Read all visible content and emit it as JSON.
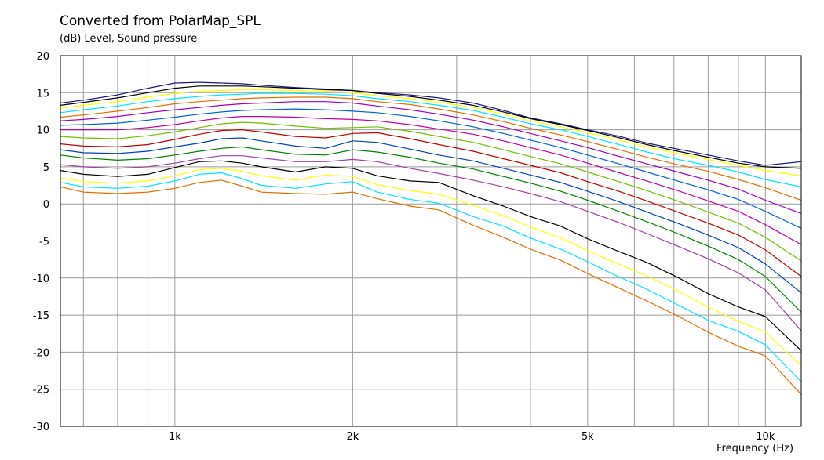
{
  "chart_data": {
    "type": "line",
    "title": "Converted from PolarMap_SPL",
    "ylabel": "(dB)  Level, Sound pressure",
    "xlabel": "Frequency  (Hz)",
    "xscale": "log",
    "xlim": [
      640,
      11500
    ],
    "ylim": [
      -30,
      20
    ],
    "grid": true,
    "x_tick_labels": [
      {
        "value": 1000,
        "label": "1k"
      },
      {
        "value": 2000,
        "label": "2k"
      },
      {
        "value": 5000,
        "label": "5k"
      },
      {
        "value": 10000,
        "label": "10k"
      }
    ],
    "y_ticks": [
      20,
      15,
      10,
      5,
      0,
      -5,
      -10,
      -15,
      -20,
      -25,
      -30
    ],
    "x": [
      640,
      700,
      800,
      900,
      1000,
      1100,
      1200,
      1300,
      1400,
      1600,
      1800,
      2000,
      2200,
      2500,
      2800,
      3200,
      3600,
      4000,
      4500,
      5000,
      5600,
      6300,
      7100,
      8000,
      9000,
      10000,
      11500
    ],
    "series": [
      {
        "color": "#1a1a80",
        "values": [
          13.6,
          14.0,
          14.7,
          15.6,
          16.3,
          16.4,
          16.3,
          16.2,
          16.0,
          15.7,
          15.5,
          15.3,
          15.0,
          14.7,
          14.3,
          13.6,
          12.6,
          11.6,
          10.8,
          10.0,
          9.2,
          8.2,
          7.4,
          6.6,
          5.8,
          5.2,
          5.7
        ]
      },
      {
        "color": "#000000",
        "values": [
          13.3,
          13.7,
          14.3,
          15.0,
          15.6,
          15.9,
          15.9,
          15.9,
          15.8,
          15.6,
          15.4,
          15.3,
          14.9,
          14.5,
          14.0,
          13.3,
          12.4,
          11.5,
          10.7,
          9.9,
          9.0,
          8.0,
          7.1,
          6.3,
          5.5,
          5.0,
          4.8
        ]
      },
      {
        "color": "#ffff00",
        "values": [
          12.9,
          13.3,
          13.8,
          14.4,
          14.9,
          15.2,
          15.3,
          15.4,
          15.4,
          15.3,
          15.2,
          15.0,
          14.6,
          14.2,
          13.7,
          13.0,
          12.1,
          11.2,
          10.4,
          9.6,
          8.7,
          7.7,
          6.8,
          6.0,
          5.2,
          4.5,
          3.8
        ]
      },
      {
        "color": "#00e5ff",
        "values": [
          12.3,
          12.7,
          13.2,
          13.8,
          14.2,
          14.5,
          14.7,
          14.8,
          14.9,
          14.9,
          14.8,
          14.6,
          14.2,
          13.8,
          13.3,
          12.6,
          11.7,
          10.8,
          10.0,
          9.1,
          8.1,
          7.0,
          6.0,
          5.2,
          4.3,
          3.3,
          2.3
        ]
      },
      {
        "color": "#e07000",
        "values": [
          11.7,
          12.0,
          12.5,
          13.0,
          13.5,
          13.8,
          14.0,
          14.2,
          14.3,
          14.4,
          14.4,
          14.2,
          13.8,
          13.4,
          12.8,
          12.0,
          11.1,
          10.2,
          9.3,
          8.4,
          7.4,
          6.3,
          5.3,
          4.4,
          3.3,
          2.2,
          0.5
        ]
      },
      {
        "color": "#a000c0",
        "values": [
          11.2,
          11.4,
          11.8,
          12.3,
          12.7,
          13.0,
          13.3,
          13.5,
          13.6,
          13.8,
          13.8,
          13.6,
          13.2,
          12.7,
          12.1,
          11.3,
          10.4,
          9.5,
          8.5,
          7.6,
          6.5,
          5.4,
          4.3,
          3.2,
          2.0,
          0.5,
          -1.3
        ]
      },
      {
        "color": "#0060e0",
        "values": [
          10.6,
          10.7,
          10.9,
          11.3,
          11.7,
          12.1,
          12.4,
          12.6,
          12.7,
          12.8,
          12.7,
          12.5,
          12.3,
          11.8,
          11.2,
          10.4,
          9.5,
          8.6,
          7.6,
          6.6,
          5.5,
          4.3,
          3.1,
          1.9,
          0.6,
          -1.0,
          -3.3
        ]
      },
      {
        "color": "#c000a0",
        "values": [
          10.0,
          10.0,
          10.0,
          10.3,
          10.7,
          11.2,
          11.6,
          11.8,
          11.8,
          11.7,
          11.5,
          11.4,
          11.2,
          10.7,
          10.1,
          9.4,
          8.5,
          7.6,
          6.6,
          5.5,
          4.3,
          3.1,
          1.8,
          0.4,
          -1.0,
          -2.8,
          -5.5
        ]
      },
      {
        "color": "#70c000",
        "values": [
          9.1,
          8.9,
          8.8,
          9.2,
          9.7,
          10.3,
          10.8,
          11.0,
          10.9,
          10.5,
          10.2,
          10.3,
          10.4,
          9.8,
          9.1,
          8.3,
          7.3,
          6.4,
          5.4,
          4.3,
          3.1,
          1.8,
          0.4,
          -1.1,
          -2.6,
          -4.5,
          -7.7
        ]
      },
      {
        "color": "#c00000",
        "values": [
          8.1,
          7.8,
          7.7,
          8.0,
          8.7,
          9.4,
          9.9,
          10.0,
          9.7,
          9.1,
          8.9,
          9.5,
          9.6,
          8.8,
          8.0,
          7.1,
          6.1,
          5.2,
          4.2,
          3.0,
          1.8,
          0.4,
          -1.1,
          -2.6,
          -4.2,
          -6.2,
          -9.8
        ]
      },
      {
        "color": "#0040c0",
        "values": [
          7.3,
          6.9,
          6.8,
          7.1,
          7.7,
          8.2,
          8.8,
          8.9,
          8.5,
          7.8,
          7.5,
          8.5,
          8.3,
          7.4,
          6.6,
          5.8,
          4.8,
          3.9,
          2.9,
          1.7,
          0.4,
          -1.1,
          -2.6,
          -4.2,
          -5.9,
          -8.1,
          -12.0
        ]
      },
      {
        "color": "#008000",
        "values": [
          6.6,
          6.2,
          5.9,
          6.1,
          6.6,
          7.1,
          7.5,
          7.7,
          7.3,
          6.7,
          6.6,
          7.3,
          7.0,
          6.3,
          5.5,
          4.7,
          3.7,
          2.8,
          1.7,
          0.5,
          -0.9,
          -2.4,
          -4.0,
          -5.7,
          -7.5,
          -9.8,
          -14.6
        ]
      },
      {
        "color": "#a040a0",
        "values": [
          5.3,
          5.0,
          4.8,
          5.0,
          5.5,
          6.1,
          6.5,
          6.5,
          6.2,
          5.7,
          5.7,
          6.0,
          5.7,
          4.8,
          4.1,
          3.2,
          2.3,
          1.4,
          0.3,
          -1.0,
          -2.4,
          -4.0,
          -5.7,
          -7.4,
          -9.3,
          -11.6,
          -17.1
        ]
      },
      {
        "color": "#000000",
        "values": [
          4.5,
          4.0,
          3.7,
          4.0,
          4.9,
          5.7,
          5.8,
          5.5,
          5.0,
          4.3,
          5.0,
          4.8,
          3.8,
          3.1,
          2.9,
          1.1,
          -0.3,
          -1.7,
          -3.0,
          -4.7,
          -6.3,
          -7.9,
          -9.9,
          -12.1,
          -13.9,
          -15.2,
          -19.8
        ]
      },
      {
        "color": "#ffff00",
        "values": [
          3.5,
          3.0,
          2.8,
          3.1,
          3.8,
          4.6,
          4.8,
          4.4,
          3.8,
          3.2,
          3.9,
          3.7,
          2.6,
          1.8,
          1.3,
          -0.2,
          -1.6,
          -3.1,
          -4.6,
          -6.3,
          -8.0,
          -9.7,
          -11.7,
          -13.9,
          -15.8,
          -17.3,
          -21.8
        ]
      },
      {
        "color": "#00e5ff",
        "values": [
          2.9,
          2.3,
          2.1,
          2.4,
          3.1,
          4.0,
          4.2,
          3.4,
          2.5,
          2.1,
          2.7,
          3.0,
          1.6,
          0.6,
          0.1,
          -1.7,
          -3.0,
          -4.6,
          -6.1,
          -7.8,
          -9.7,
          -11.5,
          -13.6,
          -15.7,
          -17.2,
          -19.0,
          -24.0
        ]
      },
      {
        "color": "#e07000",
        "values": [
          2.3,
          1.6,
          1.4,
          1.6,
          2.1,
          2.9,
          3.2,
          2.4,
          1.6,
          1.4,
          1.3,
          1.6,
          0.7,
          -0.3,
          -0.8,
          -2.9,
          -4.5,
          -6.1,
          -7.6,
          -9.4,
          -11.2,
          -13.1,
          -15.1,
          -17.3,
          -19.2,
          -20.5,
          -25.7
        ]
      }
    ]
  }
}
